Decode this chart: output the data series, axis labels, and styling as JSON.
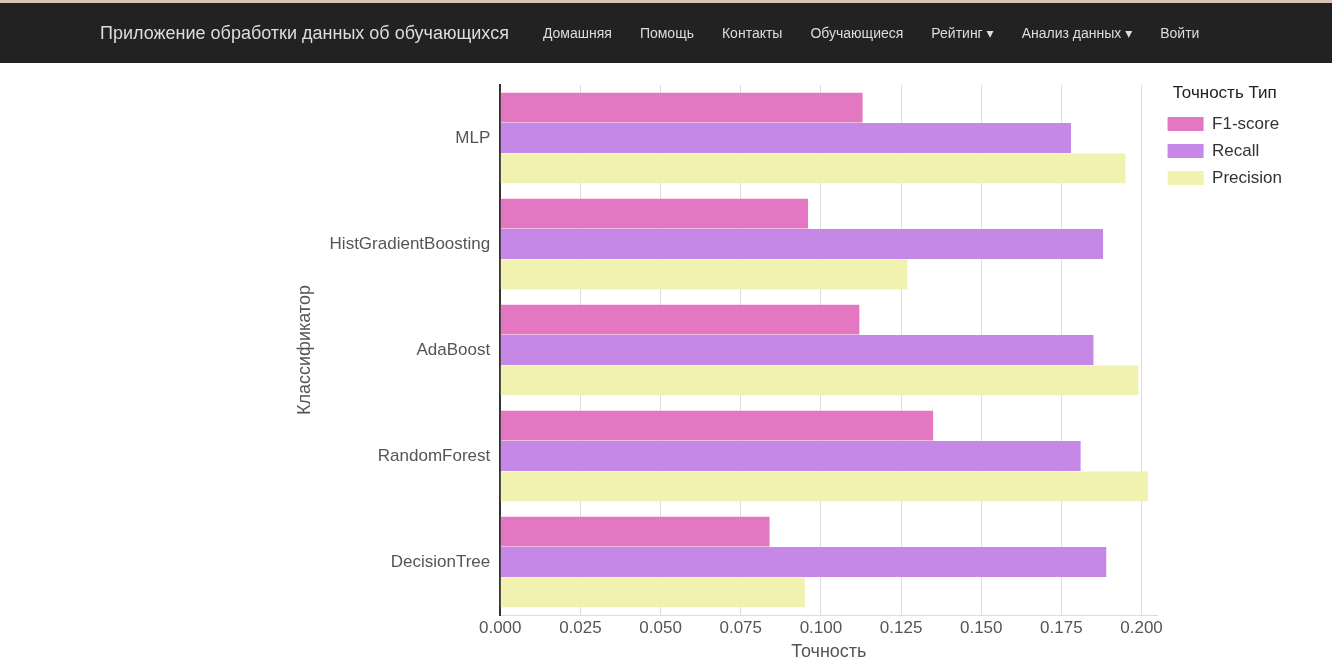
{
  "chart_data": {
    "type": "bar",
    "orientation": "horizontal",
    "xlabel": "Точность",
    "ylabel": "Классификатор",
    "legend_title": "Точность Тип",
    "categories": [
      "MLP",
      "HistGradientBoosting",
      "AdaBoost",
      "RandomForest",
      "DecisionTree"
    ],
    "series": [
      {
        "name": "F1-score",
        "color": "#e377c2",
        "values": [
          0.113,
          0.096,
          0.112,
          0.135,
          0.084
        ]
      },
      {
        "name": "Recall",
        "color": "#c688e6",
        "values": [
          0.178,
          0.188,
          0.185,
          0.181,
          0.189
        ]
      },
      {
        "name": "Precision",
        "color": "#f2f2b0",
        "values": [
          0.195,
          0.127,
          0.199,
          0.202,
          0.095
        ]
      }
    ],
    "xlim": [
      0,
      0.205
    ],
    "xticks": [
      {
        "value": 0,
        "label": "0.000"
      },
      {
        "value": 0.025,
        "label": "0.025"
      },
      {
        "value": 0.05,
        "label": "0.050"
      },
      {
        "value": 0.075,
        "label": "0.075"
      },
      {
        "value": 0.1,
        "label": "0.100"
      },
      {
        "value": 0.125,
        "label": "0.125"
      },
      {
        "value": 0.15,
        "label": "0.150"
      },
      {
        "value": 0.175,
        "label": "0.175"
      },
      {
        "value": 0.2,
        "label": "0.200"
      }
    ],
    "grid": "x",
    "legend": "right",
    "annotations": [
      "Приложение обработки данных об обучающихся",
      "Домашняя",
      "Помощь",
      "Контакты",
      "Обучающиеся",
      "Рейтинг ▾",
      "Анализ данных ▾",
      "Войти"
    ]
  }
}
